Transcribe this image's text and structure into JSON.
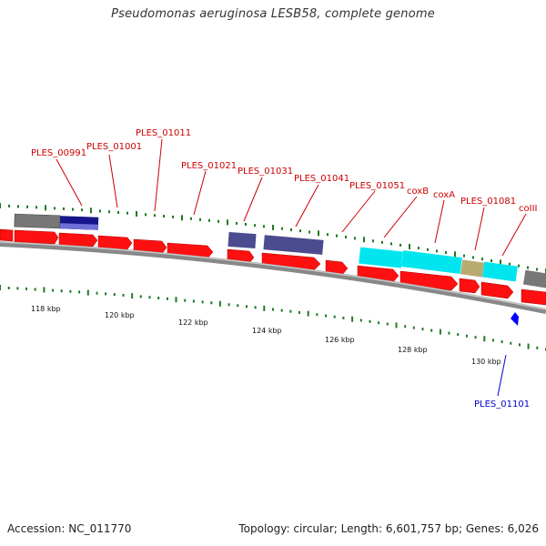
{
  "title": "Pseudomonas aeruginosa LESB58, complete genome",
  "footer": {
    "accession": "Accession: NC_011770",
    "summary": "Topology: circular; Length: 6,601,757 bp; Genes: 6,026"
  },
  "colors": {
    "gene_fwd": "#ff0000",
    "gene_rev": "#ff0000",
    "feature_grey": "#777777",
    "feature_navy": "#1a1a8c",
    "feature_slate": "#4b4b8f",
    "feature_cyan": "#00e5ee",
    "feature_olive": "#b8aa70",
    "tick": "#1f7a1f",
    "label_red": "#cc0000",
    "label_blue": "#0000cc",
    "backbone": "#888888"
  },
  "scale_labels": [
    "118 kbp",
    "120 kbp",
    "122 kbp",
    "124 kbp",
    "126 kbp",
    "128 kbp",
    "130 kbp"
  ],
  "gene_labels": [
    {
      "text": "PLES_00991",
      "color": "red"
    },
    {
      "text": "PLES_01001",
      "color": "red"
    },
    {
      "text": "PLES_01011",
      "color": "red"
    },
    {
      "text": "PLES_01021",
      "color": "red"
    },
    {
      "text": "PLES_01031",
      "color": "red"
    },
    {
      "text": "PLES_01041",
      "color": "red"
    },
    {
      "text": "PLES_01051",
      "color": "red"
    },
    {
      "text": "coxB",
      "color": "red"
    },
    {
      "text": "coxA",
      "color": "red"
    },
    {
      "text": "PLES_01081",
      "color": "red"
    },
    {
      "text": "coIII",
      "color": "red"
    },
    {
      "text": "PLES_01101",
      "color": "blue"
    }
  ]
}
